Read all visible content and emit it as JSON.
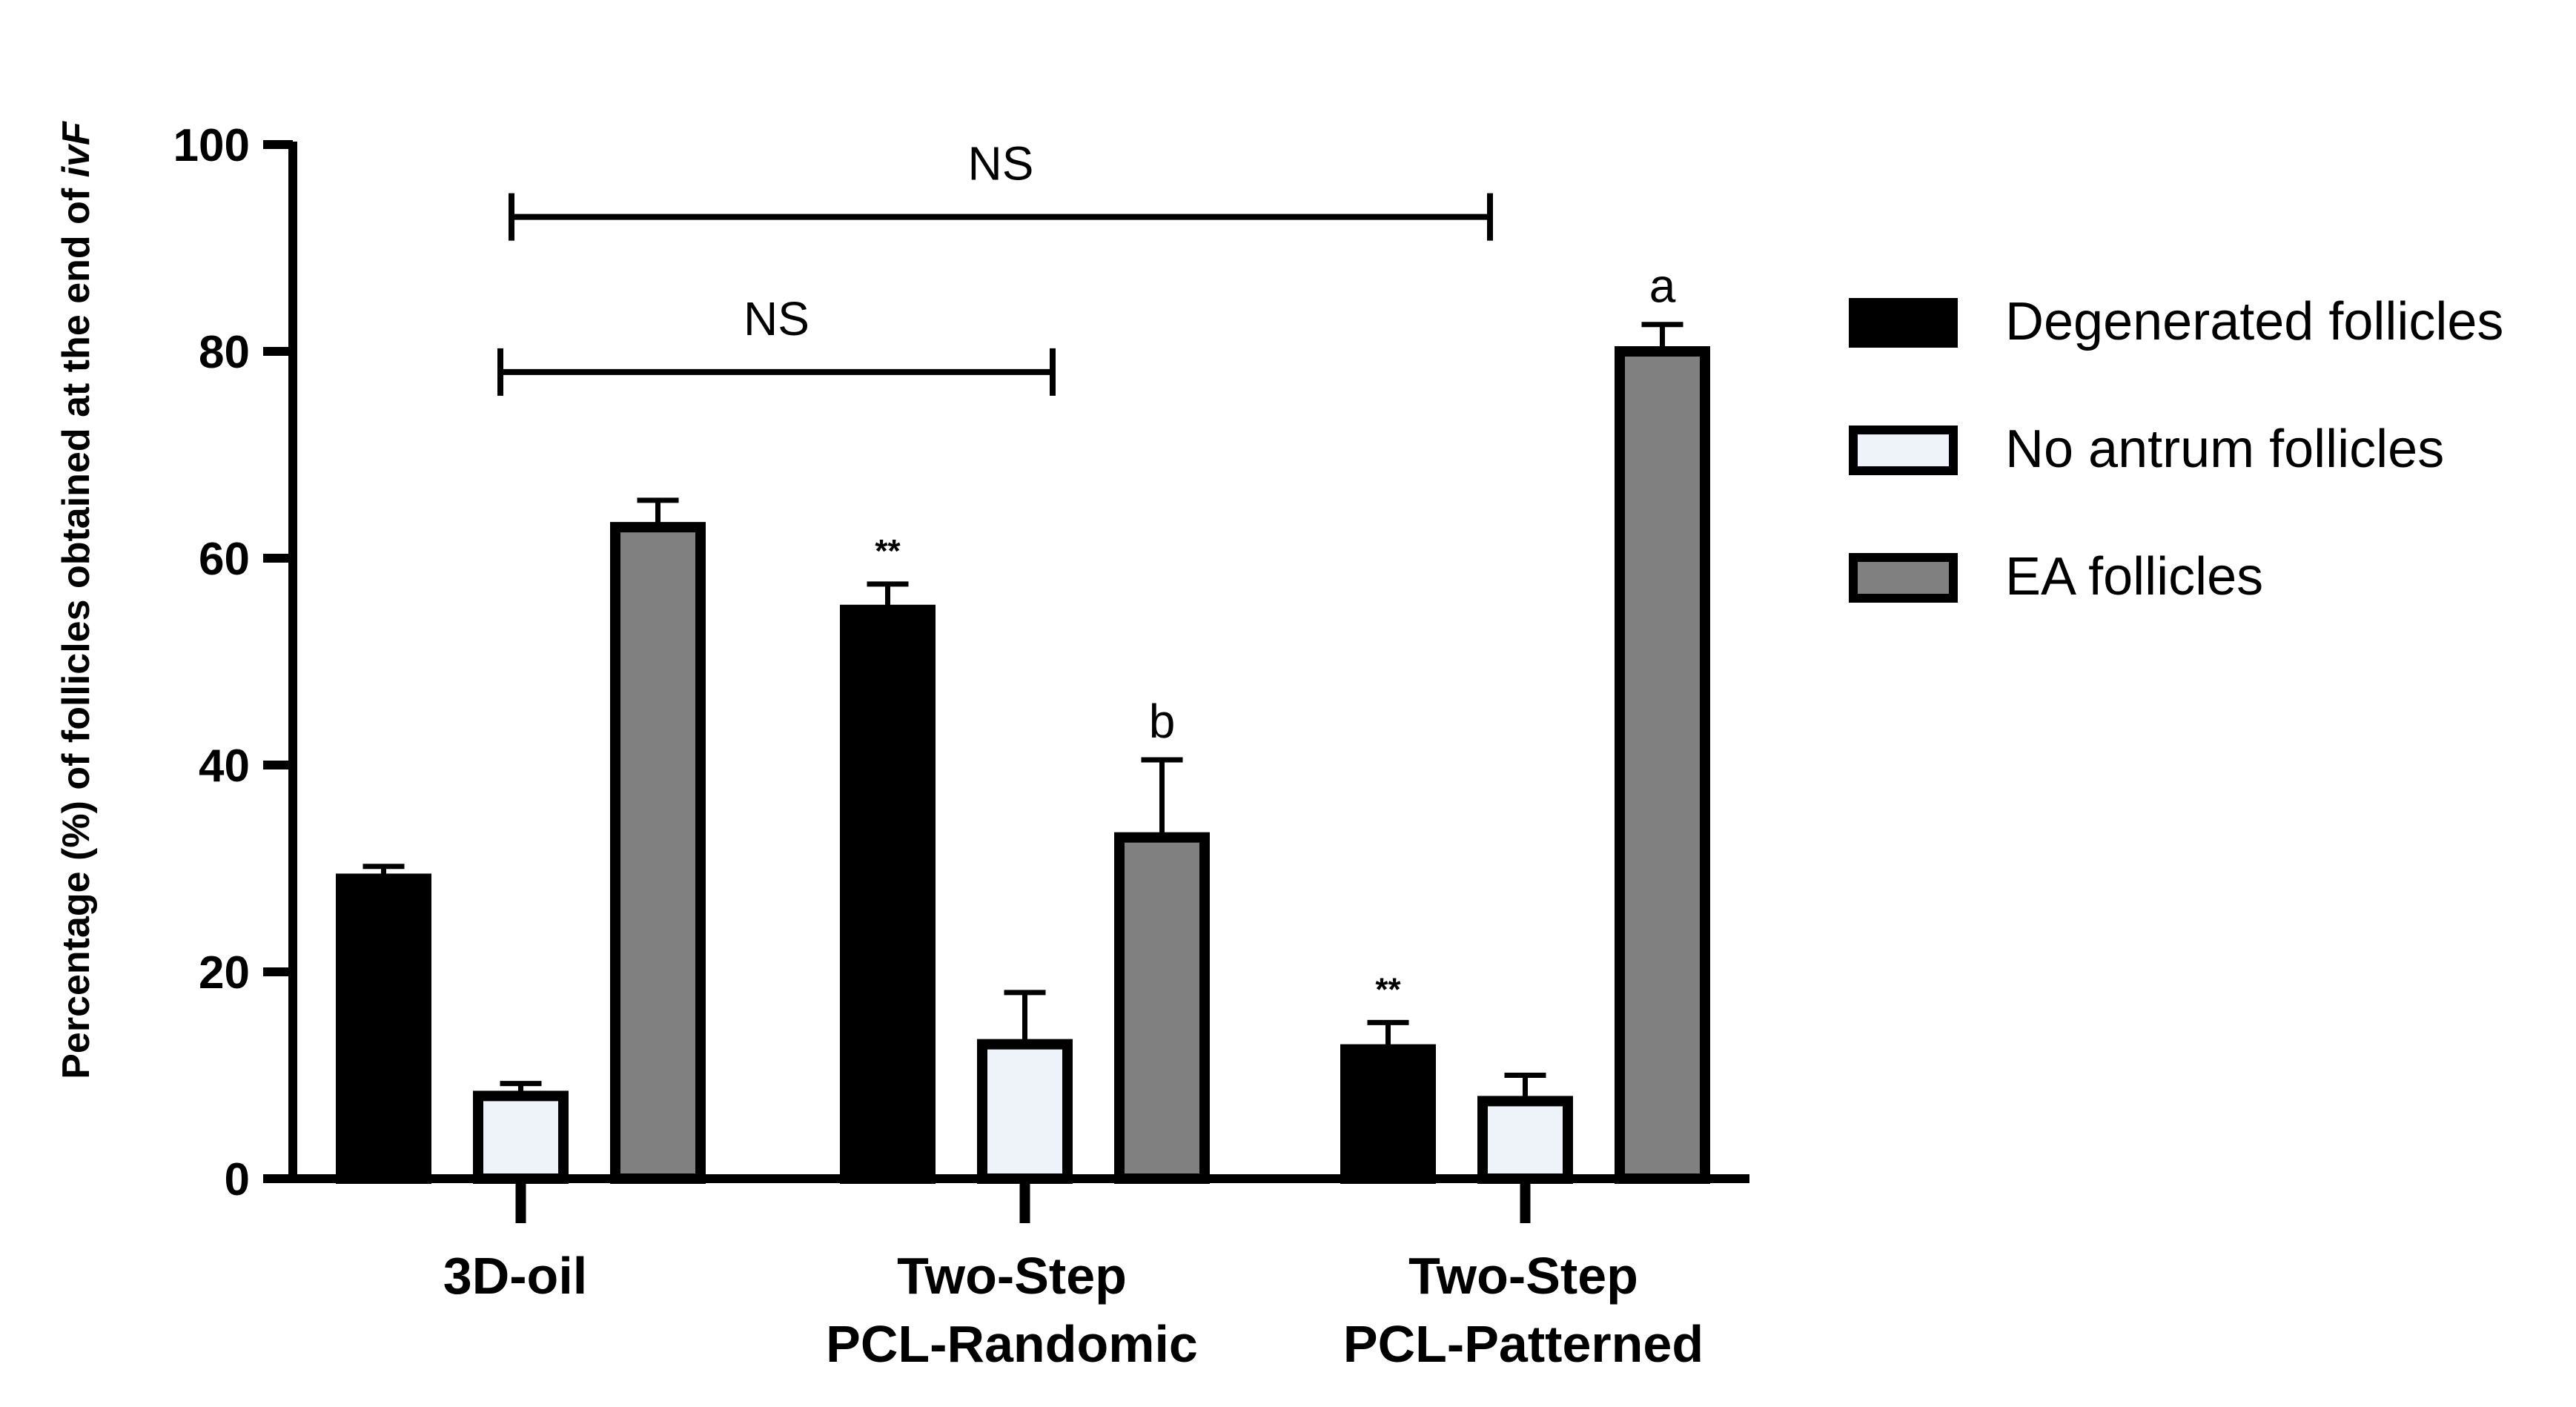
{
  "chart_data": {
    "type": "bar",
    "ylabel": "Percentage (%) of follicles obtained at the end of ivF",
    "ylabel_plain": "Percentage (%) of follicles obtained at the end of ",
    "ylabel_italic": "ivF",
    "ylim": [
      0,
      100
    ],
    "yticks": [
      "0",
      "20",
      "40",
      "60",
      "80",
      "100"
    ],
    "categories": [
      [
        "3D-oil"
      ],
      [
        "Two-Step",
        "PCL-Randomic"
      ],
      [
        "Two-Step",
        "PCL-Patterned"
      ]
    ],
    "series": [
      {
        "name": "Degenerated follicles",
        "color": "#000000",
        "values": [
          29,
          55,
          12.5
        ],
        "errors": [
          1.2,
          2.5,
          2.6
        ]
      },
      {
        "name": "No antrum follicles",
        "color": "#eef3f9",
        "values": [
          8,
          13,
          7.5
        ],
        "errors": [
          1.2,
          5,
          2.5
        ]
      },
      {
        "name": "EA follicles",
        "color": "#808080",
        "values": [
          63,
          33,
          80
        ],
        "errors": [
          2.6,
          7.5,
          2.6
        ]
      }
    ],
    "bar_annotations": [
      {
        "category": 1,
        "series": 0,
        "text": "**"
      },
      {
        "category": 2,
        "series": 0,
        "text": "**"
      },
      {
        "category": 1,
        "series": 2,
        "text": "b"
      },
      {
        "category": 2,
        "series": 2,
        "text": "a"
      }
    ],
    "comparisons": [
      {
        "from_category": 0,
        "to_category": 1,
        "y": 78,
        "text": "NS"
      },
      {
        "from_category": 0,
        "to_category": 2,
        "y": 93,
        "text": "NS"
      }
    ],
    "legend_position": "right"
  }
}
